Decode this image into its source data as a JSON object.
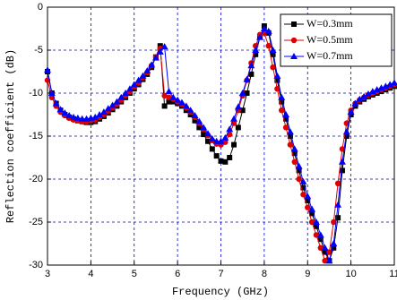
{
  "chart_data": {
    "type": "line",
    "x_label": "Frequency (GHz)",
    "y_label": "Reflection coefficient (dB)",
    "xlim": [
      3,
      11
    ],
    "xticks": [
      3,
      4,
      5,
      6,
      7,
      8,
      9,
      10,
      11
    ],
    "ylim": [
      -30,
      0
    ],
    "yticks": [
      0,
      -5,
      -10,
      -15,
      -20,
      -25,
      -30
    ],
    "grid": true,
    "legend": "upper right",
    "x": [
      3,
      3.1,
      3.2,
      3.3,
      3.4,
      3.5,
      3.6,
      3.7,
      3.8,
      3.9,
      4,
      4.1,
      4.2,
      4.3,
      4.4,
      4.5,
      4.6,
      4.7,
      4.8,
      4.9,
      5,
      5.1,
      5.2,
      5.3,
      5.4,
      5.5,
      5.6,
      5.7,
      5.8,
      5.9,
      6,
      6.1,
      6.2,
      6.3,
      6.4,
      6.5,
      6.6,
      6.7,
      6.8,
      6.9,
      7,
      7.1,
      7.2,
      7.3,
      7.4,
      7.5,
      7.6,
      7.7,
      7.8,
      7.9,
      8,
      8.1,
      8.2,
      8.3,
      8.4,
      8.5,
      8.6,
      8.7,
      8.8,
      8.9,
      9,
      9.1,
      9.2,
      9.3,
      9.4,
      9.5,
      9.6,
      9.7,
      9.8,
      9.9,
      10,
      10.1,
      10.2,
      10.3,
      10.4,
      10.5,
      10.6,
      10.7,
      10.8,
      10.9,
      11
    ],
    "series": [
      {
        "name": "W=0.3mm",
        "color": "#000000",
        "marker": "square",
        "values": [
          -7.5,
          -10,
          -11.2,
          -12,
          -12.5,
          -12.8,
          -13,
          -13.2,
          -13.3,
          -13.4,
          -13.4,
          -13.3,
          -13,
          -12.7,
          -12.3,
          -11.9,
          -11.5,
          -11,
          -10.5,
          -10,
          -9.5,
          -9,
          -8.4,
          -7.8,
          -7,
          -5.8,
          -4.5,
          -11.5,
          -11,
          -11,
          -11.2,
          -11.5,
          -12,
          -12.5,
          -13.2,
          -14,
          -14.8,
          -15.6,
          -16.5,
          -17.3,
          -17.9,
          -18,
          -17.5,
          -16,
          -14,
          -12,
          -10,
          -7.8,
          -5.5,
          -3.5,
          -2.2,
          -3,
          -5.5,
          -8.5,
          -11,
          -13,
          -15,
          -17,
          -19,
          -21,
          -22.5,
          -24,
          -25.5,
          -27,
          -28.5,
          -29.5,
          -28,
          -24.5,
          -19,
          -15,
          -12.5,
          -11.5,
          -11,
          -10.7,
          -10.4,
          -10.2,
          -10,
          -9.8,
          -9.6,
          -9.4,
          -9.2
        ]
      },
      {
        "name": "W=0.5mm",
        "color": "#e00000",
        "marker": "circle",
        "values": [
          -8.5,
          -10.5,
          -11.5,
          -12.2,
          -12.6,
          -12.9,
          -13.1,
          -13.2,
          -13.3,
          -13.3,
          -13.2,
          -13.1,
          -12.8,
          -12.5,
          -12.1,
          -11.7,
          -11.3,
          -10.8,
          -10.3,
          -9.8,
          -9.3,
          -8.8,
          -8.2,
          -7.6,
          -6.8,
          -5.8,
          -4.8,
          -10.3,
          -10.5,
          -10.7,
          -11,
          -11.3,
          -11.7,
          -12.2,
          -12.8,
          -13.5,
          -14.2,
          -14.9,
          -15.5,
          -15.9,
          -16,
          -15.7,
          -14.8,
          -13.5,
          -12,
          -10.3,
          -8.5,
          -6.5,
          -4.5,
          -3.2,
          -3,
          -4.5,
          -7,
          -9.5,
          -12,
          -14,
          -16,
          -18,
          -20,
          -21.8,
          -23.3,
          -25,
          -26.5,
          -28,
          -29.5,
          -28.5,
          -25,
          -20.5,
          -16.5,
          -13.5,
          -12,
          -11.2,
          -10.8,
          -10.5,
          -10.2,
          -10,
          -9.8,
          -9.6,
          -9.4,
          -9.2,
          -9
        ]
      },
      {
        "name": "W=0.7mm",
        "color": "#0000ff",
        "marker": "triangle",
        "values": [
          -7.3,
          -10,
          -11.2,
          -11.9,
          -12.3,
          -12.6,
          -12.8,
          -12.9,
          -13,
          -13,
          -12.9,
          -12.8,
          -12.5,
          -12.2,
          -11.8,
          -11.4,
          -11,
          -10.5,
          -10,
          -9.5,
          -9,
          -8.5,
          -8,
          -7.4,
          -6.7,
          -5.9,
          -5.2,
          -4.6,
          -9.8,
          -10.5,
          -10.8,
          -11.1,
          -11.5,
          -12,
          -12.6,
          -13.3,
          -14,
          -14.7,
          -15.3,
          -15.6,
          -15.6,
          -15.2,
          -14.2,
          -13,
          -11.6,
          -10,
          -8.4,
          -6.8,
          -5,
          -3.5,
          -2.5,
          -2.8,
          -5,
          -8,
          -10.5,
          -12.5,
          -14.5,
          -16.5,
          -18.5,
          -20.3,
          -22,
          -23.5,
          -25,
          -26.5,
          -28,
          -29.5,
          -27.5,
          -23,
          -18,
          -14.5,
          -12.2,
          -11.2,
          -10.7,
          -10.4,
          -10.1,
          -9.8,
          -9.6,
          -9.4,
          -9.2,
          -9,
          -8.8
        ]
      }
    ]
  }
}
